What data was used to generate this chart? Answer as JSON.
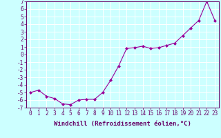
{
  "x": [
    0,
    1,
    2,
    3,
    4,
    5,
    6,
    7,
    8,
    9,
    10,
    11,
    12,
    13,
    14,
    15,
    16,
    17,
    18,
    19,
    20,
    21,
    22,
    23
  ],
  "y": [
    -5.0,
    -4.7,
    -5.5,
    -5.8,
    -6.5,
    -6.6,
    -6.0,
    -5.9,
    -5.9,
    -5.0,
    -3.4,
    -1.5,
    0.8,
    0.9,
    1.1,
    0.8,
    0.9,
    1.2,
    1.5,
    2.5,
    3.5,
    4.5,
    7.0,
    4.5
  ],
  "line_color": "#990099",
  "marker": "D",
  "markersize": 2,
  "linewidth": 0.8,
  "xlabel": "Windchill (Refroidissement éolien,°C)",
  "xlim": [
    -0.5,
    23.5
  ],
  "ylim": [
    -7,
    7
  ],
  "yticks": [
    -7,
    -6,
    -5,
    -4,
    -3,
    -2,
    -1,
    0,
    1,
    2,
    3,
    4,
    5,
    6,
    7
  ],
  "xticks": [
    0,
    1,
    2,
    3,
    4,
    5,
    6,
    7,
    8,
    9,
    10,
    11,
    12,
    13,
    14,
    15,
    16,
    17,
    18,
    19,
    20,
    21,
    22,
    23
  ],
  "bg_color": "#ccffff",
  "grid_color": "#aadddd",
  "tick_color": "#660066",
  "label_color": "#660066",
  "xlabel_fontsize": 6.5,
  "tick_fontsize": 5.5
}
